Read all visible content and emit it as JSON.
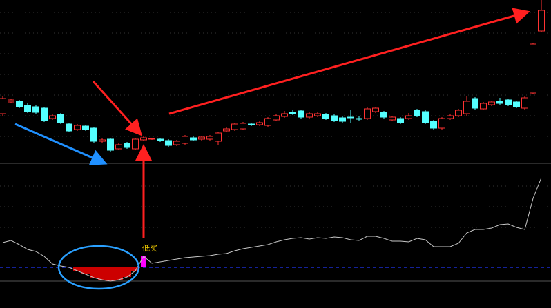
{
  "chart_data": [
    {
      "type": "candlestick",
      "up_color": "#ff3232",
      "down_color": "#54ffff",
      "ylim": [
        0,
        240
      ],
      "open": [
        75,
        92,
        93,
        87,
        85,
        83,
        68,
        74,
        60,
        52,
        57,
        54,
        35,
        38,
        24,
        32,
        24,
        37,
        38,
        38,
        36,
        30,
        32,
        40,
        38,
        38,
        35,
        50,
        52,
        53,
        60,
        59,
        58,
        66,
        71,
        77,
        79,
        70,
        72,
        74,
        72,
        69,
        70,
        68,
        68,
        78,
        77,
        66,
        68,
        68,
        80,
        78,
        64,
        54,
        68,
        72,
        75,
        97,
        82,
        88,
        93,
        95,
        92,
        83,
        105,
        195
      ],
      "close": [
        97,
        95,
        85,
        78,
        77,
        65,
        72,
        62,
        50,
        58,
        52,
        35,
        37,
        22,
        30,
        26,
        38,
        40,
        39,
        36,
        29,
        35,
        42,
        37,
        41,
        42,
        47,
        53,
        60,
        61,
        59,
        62,
        68,
        72,
        75,
        75,
        70,
        75,
        75,
        68,
        65,
        64,
        69,
        67,
        82,
        83,
        70,
        70,
        62,
        72,
        72,
        62,
        54,
        68,
        72,
        80,
        93,
        83,
        90,
        92,
        90,
        88,
        85,
        98,
        176,
        225
      ],
      "high": [
        100,
        97,
        95,
        90,
        87,
        85,
        75,
        76,
        62,
        60,
        59,
        56,
        40,
        40,
        33,
        34,
        40,
        42,
        40,
        40,
        38,
        37,
        44,
        42,
        43,
        44,
        49,
        55,
        62,
        63,
        62,
        64,
        70,
        74,
        79,
        80,
        81,
        77,
        77,
        76,
        74,
        71,
        80,
        72,
        84,
        85,
        79,
        72,
        70,
        76,
        82,
        80,
        66,
        70,
        74,
        82,
        100,
        99,
        92,
        94,
        98,
        97,
        94,
        100,
        178,
        240
      ],
      "low": [
        72,
        90,
        83,
        76,
        75,
        63,
        66,
        60,
        48,
        50,
        50,
        33,
        32,
        20,
        22,
        24,
        22,
        35,
        37,
        34,
        27,
        28,
        30,
        35,
        36,
        36,
        30,
        48,
        50,
        51,
        57,
        57,
        56,
        64,
        69,
        73,
        68,
        68,
        70,
        66,
        63,
        62,
        62,
        64,
        66,
        76,
        68,
        64,
        60,
        66,
        70,
        60,
        52,
        52,
        66,
        70,
        72,
        81,
        80,
        86,
        88,
        86,
        83,
        81,
        103,
        193
      ]
    },
    {
      "type": "line",
      "color": "#c8c8c8",
      "negative_color": "#cc0000",
      "signal_color": "#ff00ff",
      "ylim": [
        -30,
        150
      ],
      "annotations": [
        "低买"
      ],
      "values": [
        36,
        39,
        33,
        26,
        23,
        16,
        5,
        2,
        0,
        -5,
        -10,
        -15,
        -18,
        -20,
        -18,
        -14,
        -5,
        16,
        6,
        8,
        10,
        12,
        14,
        15,
        16,
        17,
        19,
        20,
        24,
        27,
        29,
        31,
        33,
        37,
        40,
        42,
        43,
        41,
        43,
        42,
        44,
        43,
        40,
        39,
        45,
        45,
        42,
        38,
        38,
        37,
        42,
        40,
        30,
        30,
        30,
        35,
        50,
        55,
        55,
        57,
        62,
        63,
        58,
        55,
        100,
        130
      ]
    }
  ]
}
